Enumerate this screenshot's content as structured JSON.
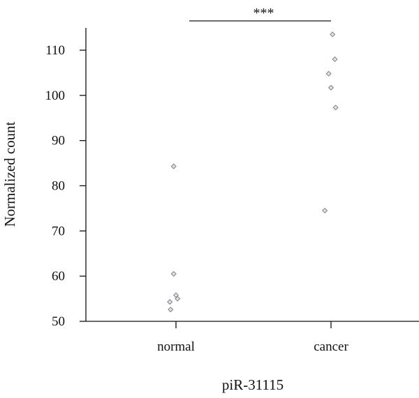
{
  "chart_data": {
    "type": "scatter",
    "title": "",
    "xlabel": "piR-31115",
    "ylabel": "Normalized count",
    "categories": [
      "normal",
      "cancer"
    ],
    "ylim": [
      50,
      116
    ],
    "yticks": [
      50,
      60,
      70,
      80,
      90,
      100,
      110
    ],
    "grid": false,
    "series": [
      {
        "category": "normal",
        "points": [
          {
            "jitter": -0.03,
            "y": 84.3
          },
          {
            "jitter": -0.03,
            "y": 60.5
          },
          {
            "jitter": 0.0,
            "y": 55.8
          },
          {
            "jitter": 0.02,
            "y": 55.0
          },
          {
            "jitter": -0.08,
            "y": 54.3
          },
          {
            "jitter": -0.07,
            "y": 52.6
          }
        ]
      },
      {
        "category": "cancer",
        "points": [
          {
            "jitter": 0.02,
            "y": 113.5
          },
          {
            "jitter": 0.05,
            "y": 108.0
          },
          {
            "jitter": -0.03,
            "y": 104.8
          },
          {
            "jitter": 0.0,
            "y": 101.7
          },
          {
            "jitter": 0.06,
            "y": 97.3
          },
          {
            "jitter": -0.08,
            "y": 74.5
          }
        ]
      }
    ],
    "significance": {
      "label": "***",
      "from": "normal",
      "to": "cancer"
    }
  }
}
